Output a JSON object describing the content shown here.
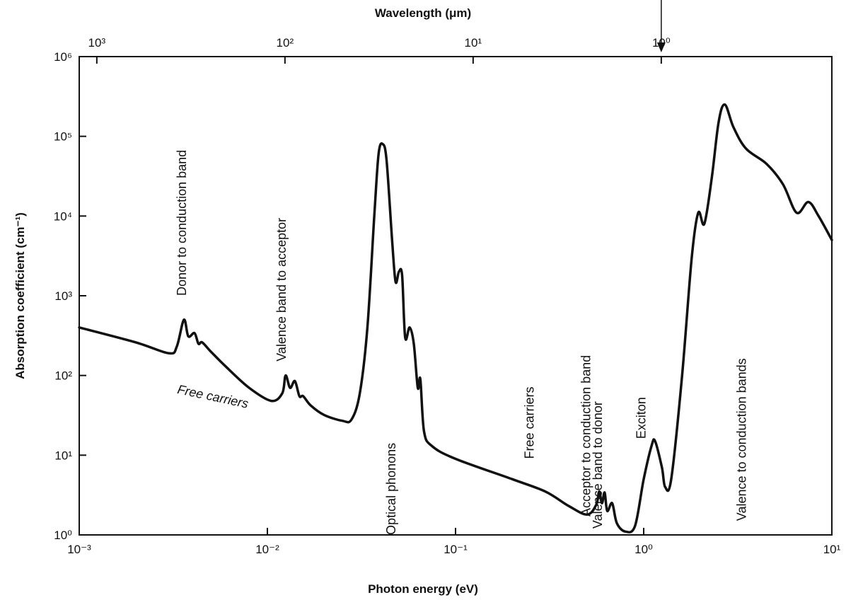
{
  "chart_data": {
    "type": "line",
    "xscale": "log",
    "yscale": "log",
    "xlim": [
      0.001,
      10
    ],
    "ylim": [
      1,
      1000000
    ],
    "xlabel": "Photon energy (eV)",
    "ylabel": "Absorption coefficient (cm⁻¹)",
    "x_ticks": [
      {
        "value": 0.001,
        "label": "10⁻³"
      },
      {
        "value": 0.01,
        "label": "10⁻²"
      },
      {
        "value": 0.1,
        "label": "10⁻¹"
      },
      {
        "value": 1,
        "label": "10⁰"
      },
      {
        "value": 10,
        "label": "10¹"
      }
    ],
    "y_ticks": [
      {
        "value": 1,
        "label": "10⁰"
      },
      {
        "value": 10,
        "label": "10¹"
      },
      {
        "value": 100,
        "label": "10²"
      },
      {
        "value": 1000,
        "label": "10³"
      },
      {
        "value": 10000,
        "label": "10⁴"
      },
      {
        "value": 100000,
        "label": "10⁵"
      },
      {
        "value": 1000000,
        "label": "10⁶"
      }
    ],
    "top_axis": {
      "label": "Wavelength (μm)",
      "ticks": [
        {
          "value": 1000,
          "label": "10³"
        },
        {
          "value": 100,
          "label": "10²"
        },
        {
          "value": 10,
          "label": "10¹"
        },
        {
          "value": 1,
          "label": "10⁰"
        }
      ]
    },
    "marker": {
      "x": 1.24,
      "style": "arrow"
    },
    "series": [
      {
        "points": [
          [
            0.001,
            400
          ],
          [
            0.002,
            260
          ],
          [
            0.003,
            190
          ],
          [
            0.0033,
            230
          ],
          [
            0.0036,
            500
          ],
          [
            0.0038,
            310
          ],
          [
            0.0041,
            340
          ],
          [
            0.0043,
            250
          ],
          [
            0.0045,
            260
          ],
          [
            0.005,
            200
          ],
          [
            0.006,
            130
          ],
          [
            0.008,
            70
          ],
          [
            0.0105,
            48
          ],
          [
            0.012,
            60
          ],
          [
            0.0125,
            100
          ],
          [
            0.0132,
            70
          ],
          [
            0.014,
            85
          ],
          [
            0.0148,
            55
          ],
          [
            0.0155,
            55
          ],
          [
            0.017,
            42
          ],
          [
            0.02,
            32
          ],
          [
            0.025,
            27
          ],
          [
            0.028,
            28
          ],
          [
            0.031,
            60
          ],
          [
            0.034,
            400
          ],
          [
            0.037,
            10000
          ],
          [
            0.039,
            60000
          ],
          [
            0.041,
            80000
          ],
          [
            0.043,
            50000
          ],
          [
            0.046,
            5000
          ],
          [
            0.048,
            1500
          ],
          [
            0.05,
            2000
          ],
          [
            0.052,
            1800
          ],
          [
            0.054,
            300
          ],
          [
            0.057,
            400
          ],
          [
            0.06,
            250
          ],
          [
            0.063,
            70
          ],
          [
            0.065,
            90
          ],
          [
            0.068,
            20
          ],
          [
            0.075,
            13
          ],
          [
            0.1,
            9
          ],
          [
            0.2,
            5
          ],
          [
            0.3,
            3.5
          ],
          [
            0.4,
            2.3
          ],
          [
            0.5,
            1.8
          ],
          [
            0.56,
            2.4
          ],
          [
            0.58,
            3.5
          ],
          [
            0.6,
            2.5
          ],
          [
            0.62,
            3.4
          ],
          [
            0.64,
            2.0
          ],
          [
            0.68,
            2.5
          ],
          [
            0.72,
            1.4
          ],
          [
            0.8,
            1.1
          ],
          [
            0.9,
            1.3
          ],
          [
            1.0,
            5
          ],
          [
            1.1,
            13
          ],
          [
            1.15,
            15
          ],
          [
            1.25,
            7
          ],
          [
            1.3,
            4
          ],
          [
            1.4,
            5
          ],
          [
            1.6,
            100
          ],
          [
            1.8,
            3000
          ],
          [
            1.95,
            11000
          ],
          [
            2.1,
            8000
          ],
          [
            2.3,
            30000
          ],
          [
            2.5,
            150000
          ],
          [
            2.7,
            250000
          ],
          [
            3.0,
            130000
          ],
          [
            3.5,
            70000
          ],
          [
            4.5,
            45000
          ],
          [
            5.5,
            25000
          ],
          [
            6.5,
            11000
          ],
          [
            7.5,
            15000
          ],
          [
            8.5,
            10000
          ],
          [
            10,
            5000
          ]
        ]
      }
    ],
    "annotations": [
      {
        "text": "Donor to conduction band",
        "x": 0.0037,
        "y": 1000,
        "rotate": -90
      },
      {
        "text": "Valence band to acceptor",
        "x": 0.0125,
        "y": 150,
        "rotate": -90
      },
      {
        "text": "Free carriers",
        "x": 0.0033,
        "y": 60,
        "rotate": 12
      },
      {
        "text": "Optical phonons",
        "x": 0.048,
        "y": 1.0,
        "rotate": -90
      },
      {
        "text": "Free carriers",
        "x": 0.26,
        "y": 9,
        "rotate": -90
      },
      {
        "text": "Acceptor to conduction band",
        "x": 0.52,
        "y": 1.7,
        "rotate": -90
      },
      {
        "text": "Valence band to donor",
        "x": 0.6,
        "y": 1.2,
        "rotate": -90
      },
      {
        "text": "Exciton",
        "x": 1.02,
        "y": 16,
        "rotate": -90
      },
      {
        "text": "Valence to conduction bands",
        "x": 3.5,
        "y": 1.5,
        "rotate": -90
      }
    ]
  }
}
